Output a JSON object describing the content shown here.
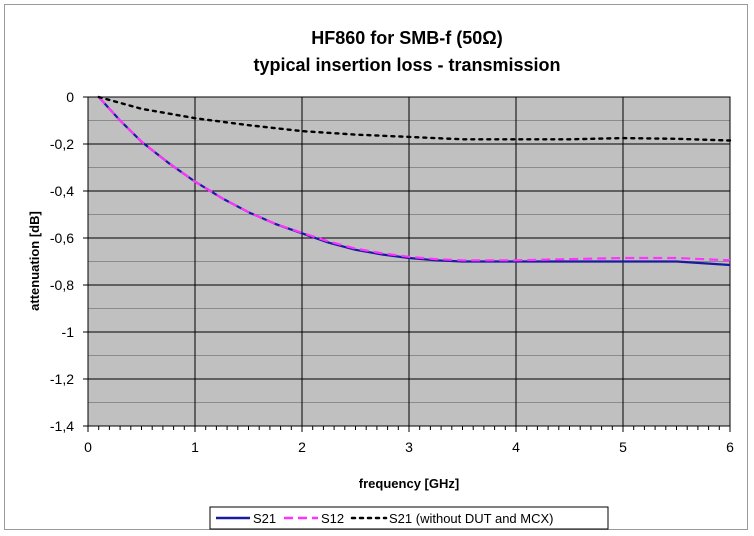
{
  "chart_data": {
    "type": "line",
    "title": "HF860 for SMB-f (50Ω)",
    "subtitle": "typical insertion loss - transmission",
    "xlabel": "frequency [GHz]",
    "ylabel": "attenuation [dB]",
    "xlim": [
      0,
      6
    ],
    "ylim": [
      -1.4,
      0
    ],
    "xticks": [
      0,
      1,
      2,
      3,
      4,
      5,
      6
    ],
    "xtick_labels": [
      "0",
      "1",
      "2",
      "3",
      "4",
      "5",
      "6"
    ],
    "yticks": [
      0,
      -0.2,
      -0.4,
      -0.6,
      -0.8,
      -1,
      -1.2,
      -1.4
    ],
    "ytick_labels": [
      "0",
      "-0,2",
      "-0,4",
      "-0,6",
      "-0,8",
      "-1",
      "-1,2",
      "-1,4"
    ],
    "grid": true,
    "legend_position": "bottom",
    "plot_background": "#c0c0c0",
    "series": [
      {
        "name": "S21",
        "color": "#1a1aa0",
        "style": "solid",
        "x": [
          0.1,
          0.3,
          0.5,
          0.75,
          1.0,
          1.25,
          1.5,
          1.75,
          2.0,
          2.25,
          2.5,
          2.75,
          3.0,
          3.25,
          3.5,
          4.0,
          4.5,
          5.0,
          5.5,
          6.0
        ],
        "y": [
          0.0,
          -0.1,
          -0.19,
          -0.28,
          -0.36,
          -0.43,
          -0.49,
          -0.54,
          -0.58,
          -0.62,
          -0.65,
          -0.67,
          -0.685,
          -0.695,
          -0.7,
          -0.7,
          -0.7,
          -0.7,
          -0.7,
          -0.715
        ]
      },
      {
        "name": "S12",
        "color": "#ff33ff",
        "style": "dashed",
        "x": [
          0.1,
          0.3,
          0.5,
          0.75,
          1.0,
          1.25,
          1.5,
          1.75,
          2.0,
          2.25,
          2.5,
          2.75,
          3.0,
          3.25,
          3.5,
          4.0,
          4.5,
          5.0,
          5.5,
          6.0
        ],
        "y": [
          0.0,
          -0.1,
          -0.19,
          -0.28,
          -0.36,
          -0.43,
          -0.49,
          -0.54,
          -0.578,
          -0.615,
          -0.645,
          -0.665,
          -0.68,
          -0.69,
          -0.695,
          -0.695,
          -0.69,
          -0.685,
          -0.685,
          -0.695
        ]
      },
      {
        "name": "S21 (without DUT and MCX)",
        "color": "#000000",
        "style": "dotted",
        "x": [
          0.1,
          0.5,
          1.0,
          1.5,
          2.0,
          2.5,
          3.0,
          3.5,
          4.0,
          4.5,
          5.0,
          5.5,
          6.0
        ],
        "y": [
          0.0,
          -0.05,
          -0.09,
          -0.12,
          -0.145,
          -0.16,
          -0.17,
          -0.18,
          -0.18,
          -0.18,
          -0.175,
          -0.178,
          -0.185
        ]
      }
    ]
  }
}
